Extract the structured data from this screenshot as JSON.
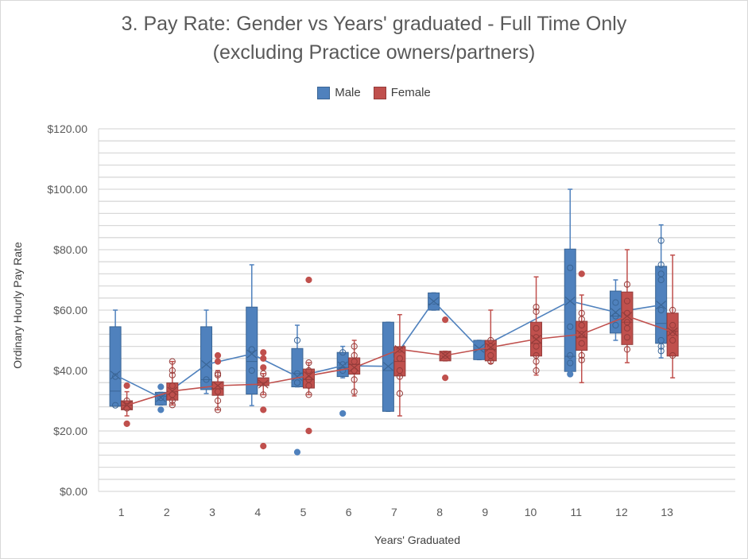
{
  "chart_data": {
    "type": "box",
    "title": "3. Pay Rate: Gender vs Years' graduated - Full Time Only",
    "subtitle": "(excluding Practice owners/partners)",
    "xlabel": "Years' Graduated",
    "ylabel": "Ordinary Hourly Pay Rate",
    "ylim": [
      0,
      120
    ],
    "y_major_step": 20,
    "y_minor_step": 4,
    "grid": true,
    "legend_position": "top",
    "y_tick_labels": [
      "$0.00",
      "$20.00",
      "$40.00",
      "$60.00",
      "$80.00",
      "$100.00",
      "$120.00"
    ],
    "categories": [
      "1",
      "2",
      "3",
      "4",
      "5",
      "6",
      "7",
      "8",
      "9",
      "10",
      "11",
      "12",
      "13"
    ],
    "series": [
      {
        "name": "Male",
        "color": "#4f81bd",
        "mean_line": true,
        "boxes": [
          {
            "min": 28.2,
            "q1": 28.2,
            "median": 33.2,
            "q3": 54.5,
            "max": 60,
            "mean": 38.5,
            "points": [
              28.5,
              38
            ]
          },
          {
            "min": 28.6,
            "q1": 28.6,
            "median": 31.5,
            "q3": 32.8,
            "max": 32.8,
            "mean": 31,
            "points": [
              34.6,
              27,
              31
            ]
          },
          {
            "min": 32.4,
            "q1": 33.7,
            "median": 37,
            "q3": 54.5,
            "max": 60,
            "mean": 42,
            "points": [
              37
            ]
          },
          {
            "min": 28.4,
            "q1": 32.2,
            "median": 43,
            "q3": 61,
            "max": 75,
            "mean": 45.5,
            "points": [
              47,
              40
            ]
          },
          {
            "min": 34.6,
            "q1": 34.6,
            "median": 39,
            "q3": 47.3,
            "max": 55,
            "mean": 38,
            "points": [
              50,
              13,
              39,
              36
            ]
          },
          {
            "min": 37.6,
            "q1": 38,
            "median": 41,
            "q3": 46,
            "max": 48,
            "mean": 41.6,
            "points": [
              46,
              42,
              40,
              25.8
            ]
          },
          {
            "min": 26.5,
            "q1": 26.5,
            "median": 40,
            "q3": 56,
            "max": 56,
            "mean": 41.4,
            "points": []
          },
          {
            "min": 60,
            "q1": 60,
            "median": 62,
            "q3": 65.7,
            "max": 65.7,
            "mean": 62.9,
            "points": []
          },
          {
            "min": 43.6,
            "q1": 43.6,
            "median": 47,
            "q3": 50,
            "max": 50,
            "mean": 47.3,
            "points": []
          },
          null,
          {
            "min": 39,
            "q1": 39.7,
            "median": 44.7,
            "q3": 80.2,
            "max": 100,
            "mean": 63,
            "points": [
              74,
              54.5,
              45,
              42.5,
              38.8
            ]
          },
          {
            "min": 50,
            "q1": 52.4,
            "median": 58,
            "q3": 66.3,
            "max": 70,
            "mean": 59.3,
            "points": [
              62.5,
              58,
              55
            ]
          },
          {
            "min": 44.2,
            "q1": 49,
            "median": 55.6,
            "q3": 74.5,
            "max": 88.2,
            "mean": 61.7,
            "points": [
              83,
              75,
              72,
              70,
              60,
              50,
              48,
              46.5
            ]
          }
        ]
      },
      {
        "name": "Female",
        "color": "#c0504d",
        "mean_line": true,
        "boxes": [
          {
            "min": 25,
            "q1": 27,
            "median": 28.5,
            "q3": 30,
            "max": 33,
            "mean": 28.5,
            "points": [
              35,
              22.4,
              30,
              27.5
            ]
          },
          {
            "min": 28.6,
            "q1": 30.2,
            "median": 33,
            "q3": 35.9,
            "max": 43,
            "mean": 33.2,
            "points": [
              43,
              40,
              38.5,
              35,
              32,
              30,
              28.6
            ]
          },
          {
            "min": 27,
            "q1": 31.8,
            "median": 34,
            "q3": 36.3,
            "max": 40,
            "mean": 35,
            "points": [
              45,
              43,
              39,
              38.5,
              33,
              30,
              27
            ]
          },
          {
            "min": 32,
            "q1": 35,
            "median": 36,
            "q3": 37.6,
            "max": 39,
            "mean": 35.5,
            "points": [
              46,
              44,
              41,
              39,
              32,
              27,
              15
            ]
          },
          {
            "min": 32,
            "q1": 34.2,
            "median": 37,
            "q3": 40.5,
            "max": 42.6,
            "mean": 38.3,
            "points": [
              70,
              42.6,
              40,
              37,
              35,
              32,
              20
            ]
          },
          {
            "min": 31.6,
            "q1": 38.8,
            "median": 42,
            "q3": 44.2,
            "max": 50,
            "mean": 41,
            "points": [
              48,
              45,
              43,
              40,
              37,
              33
            ]
          },
          {
            "min": 25,
            "q1": 38.2,
            "median": 43,
            "q3": 47.9,
            "max": 58.5,
            "mean": 47,
            "points": [
              47,
              44,
              40,
              38,
              32.4
            ]
          },
          {
            "min": 43.2,
            "q1": 43.2,
            "median": 45,
            "q3": 46.4,
            "max": 46.4,
            "mean": 45,
            "points": [
              56.8,
              37.6,
              45
            ]
          },
          {
            "min": 42.4,
            "q1": 43.2,
            "median": 47,
            "q3": 50,
            "max": 60,
            "mean": 47.7,
            "points": [
              50,
              48,
              45,
              43
            ]
          },
          {
            "min": 38.5,
            "q1": 44.8,
            "median": 49,
            "q3": 56,
            "max": 71,
            "mean": 50.4,
            "points": [
              61,
              59.5,
              54,
              51,
              48,
              45,
              43,
              40
            ]
          },
          {
            "min": 36,
            "q1": 46.7,
            "median": 51,
            "q3": 56.3,
            "max": 65,
            "mean": 52,
            "points": [
              72,
              59,
              57,
              55,
              52,
              49,
              45,
              43.5
            ]
          },
          {
            "min": 42.6,
            "q1": 48.6,
            "median": 56,
            "q3": 66,
            "max": 80,
            "mean": 58,
            "points": [
              68.5,
              63,
              59,
              56,
              54,
              51,
              47
            ]
          },
          {
            "min": 37.6,
            "q1": 44.8,
            "median": 53,
            "q3": 59,
            "max": 78.2,
            "mean": 52.8,
            "points": [
              60,
              55,
              52.5,
              50,
              45
            ]
          }
        ]
      }
    ]
  }
}
